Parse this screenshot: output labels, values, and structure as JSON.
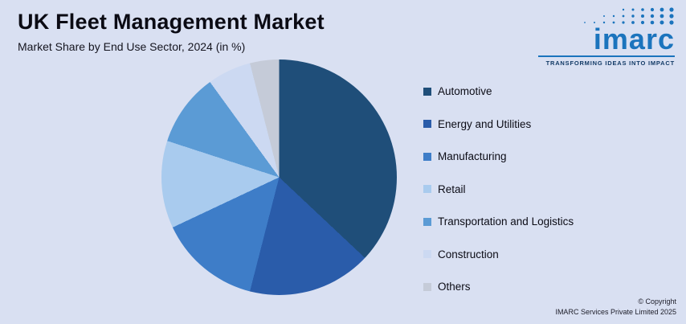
{
  "header": {
    "title": "UK Fleet Management Market",
    "subtitle": "Market Share by End Use Sector, 2024 (in %)"
  },
  "logo": {
    "word": "imarc",
    "tagline": "TRANSFORMING IDEAS INTO IMPACT",
    "brand_color": "#1b74bd"
  },
  "chart_data": {
    "type": "pie",
    "title": "UK Fleet Management Market",
    "subtitle": "Market Share by End Use Sector, 2024 (in %)",
    "legend_position": "right",
    "start_angle_deg": 0,
    "direction": "clockwise",
    "segments": [
      {
        "label": "Automotive",
        "value": 37,
        "color": "#1f4e79"
      },
      {
        "label": "Energy and Utilities",
        "value": 17,
        "color": "#2a5caa"
      },
      {
        "label": "Manufacturing",
        "value": 14,
        "color": "#3e7dc8"
      },
      {
        "label": "Retail",
        "value": 12,
        "color": "#a9cbee"
      },
      {
        "label": "Transportation and Logistics",
        "value": 10,
        "color": "#5b9bd5"
      },
      {
        "label": "Construction",
        "value": 6,
        "color": "#ccd9f2"
      },
      {
        "label": "Others",
        "value": 4,
        "color": "#c5cbd8"
      }
    ]
  },
  "footer": {
    "line1": "© Copyright",
    "line2": "IMARC Services Private Limited 2025"
  }
}
